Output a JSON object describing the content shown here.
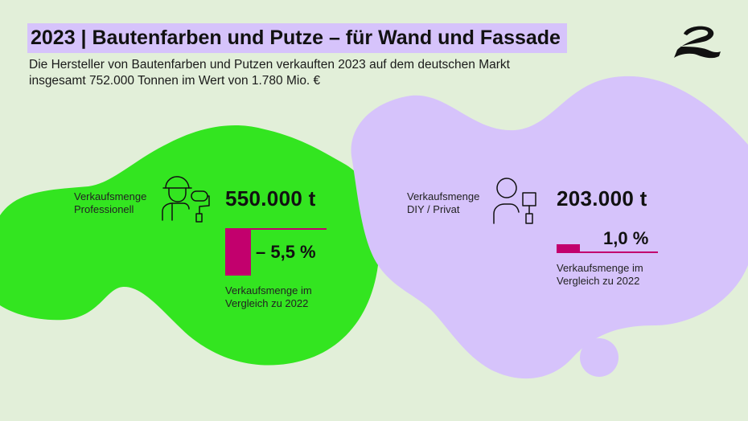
{
  "header": {
    "title": "2023 | Bautenfarben und Putze – für Wand und Fassade",
    "subtitle_line1": "Die Hersteller von Bautenfarben und Putzen verkauften 2023 auf dem deutschen Markt",
    "subtitle_line2": "insgesamt 752.000 Tonnen im Wert von 1.780 Mio. €"
  },
  "professional": {
    "label_line1": "Verkaufsmenge",
    "label_line2": "Professionell",
    "amount": "550.000 t",
    "change": "– 5,5 %",
    "change_value_percent": -5.5,
    "compare_line1": "Verkaufsmenge im",
    "compare_line2": "Vergleich zu 2022",
    "icon": "painter-icon"
  },
  "diy": {
    "label_line1": "Verkaufsmenge",
    "label_line2": "DIY / Privat",
    "amount": "203.000 t",
    "change": "1,0 %",
    "change_value_percent": 1.0,
    "compare_line1": "Verkaufsmenge im",
    "compare_line2": "Vergleich zu 2022",
    "icon": "diy-person-icon"
  },
  "colors": {
    "background": "#e2efd9",
    "green_blob": "#33e520",
    "purple_blob": "#d6c3fb",
    "accent": "#c2006d"
  }
}
